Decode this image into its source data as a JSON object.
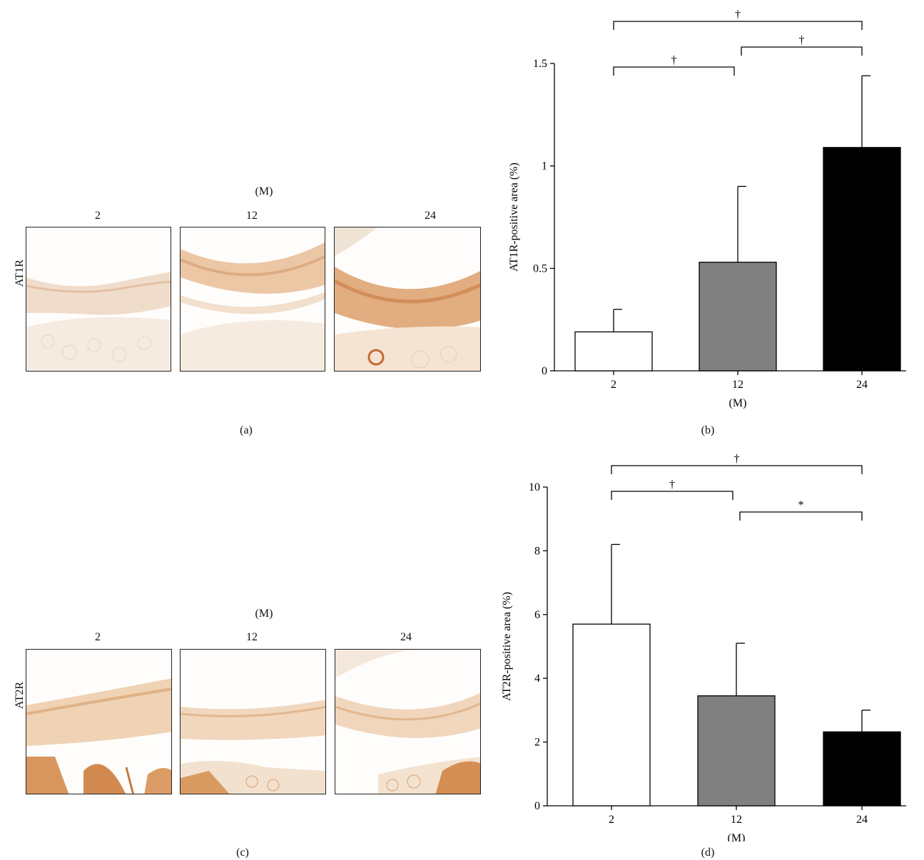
{
  "panels": {
    "a": {
      "caption": "(a)",
      "unit": "(M)",
      "row_label": "AT1R",
      "ages": [
        "2",
        "12",
        "24"
      ]
    },
    "c": {
      "caption": "(c)",
      "unit": "(M)",
      "row_label": "AT2R",
      "ages": [
        "2",
        "12",
        "24"
      ]
    },
    "b": {
      "caption": "(b)"
    },
    "d": {
      "caption": "(d)"
    }
  },
  "colors": {
    "bar_2": "#ffffff",
    "bar_12": "#808080",
    "bar_24": "#000000",
    "stain": "#c8742e"
  },
  "chart_data": [
    {
      "type": "bar",
      "panel": "b",
      "categories": [
        "2",
        "12",
        "24"
      ],
      "values": [
        0.19,
        0.53,
        1.09
      ],
      "errors": [
        0.11,
        0.37,
        0.35
      ],
      "xlabel": "(M)",
      "ylabel": "AT1R-positive area (%)",
      "ylim": [
        0,
        1.5
      ],
      "yticks": [
        "0",
        "0.5",
        "1",
        "1.5"
      ],
      "significance": [
        {
          "from": "2",
          "to": "24",
          "label": "†"
        },
        {
          "from": "12",
          "to": "24",
          "label": "†"
        },
        {
          "from": "2",
          "to": "12",
          "label": "†"
        }
      ]
    },
    {
      "type": "bar",
      "panel": "d",
      "categories": [
        "2",
        "12",
        "24"
      ],
      "values": [
        5.7,
        3.45,
        2.32
      ],
      "errors": [
        2.5,
        1.65,
        0.68
      ],
      "xlabel": "(M)",
      "ylabel": "AT2R-positive area (%)",
      "ylim": [
        0,
        10
      ],
      "yticks": [
        "0",
        "2",
        "4",
        "6",
        "8",
        "10"
      ],
      "significance": [
        {
          "from": "2",
          "to": "24",
          "label": "†"
        },
        {
          "from": "2",
          "to": "12",
          "label": "†"
        },
        {
          "from": "12",
          "to": "24",
          "label": "*"
        }
      ]
    }
  ]
}
